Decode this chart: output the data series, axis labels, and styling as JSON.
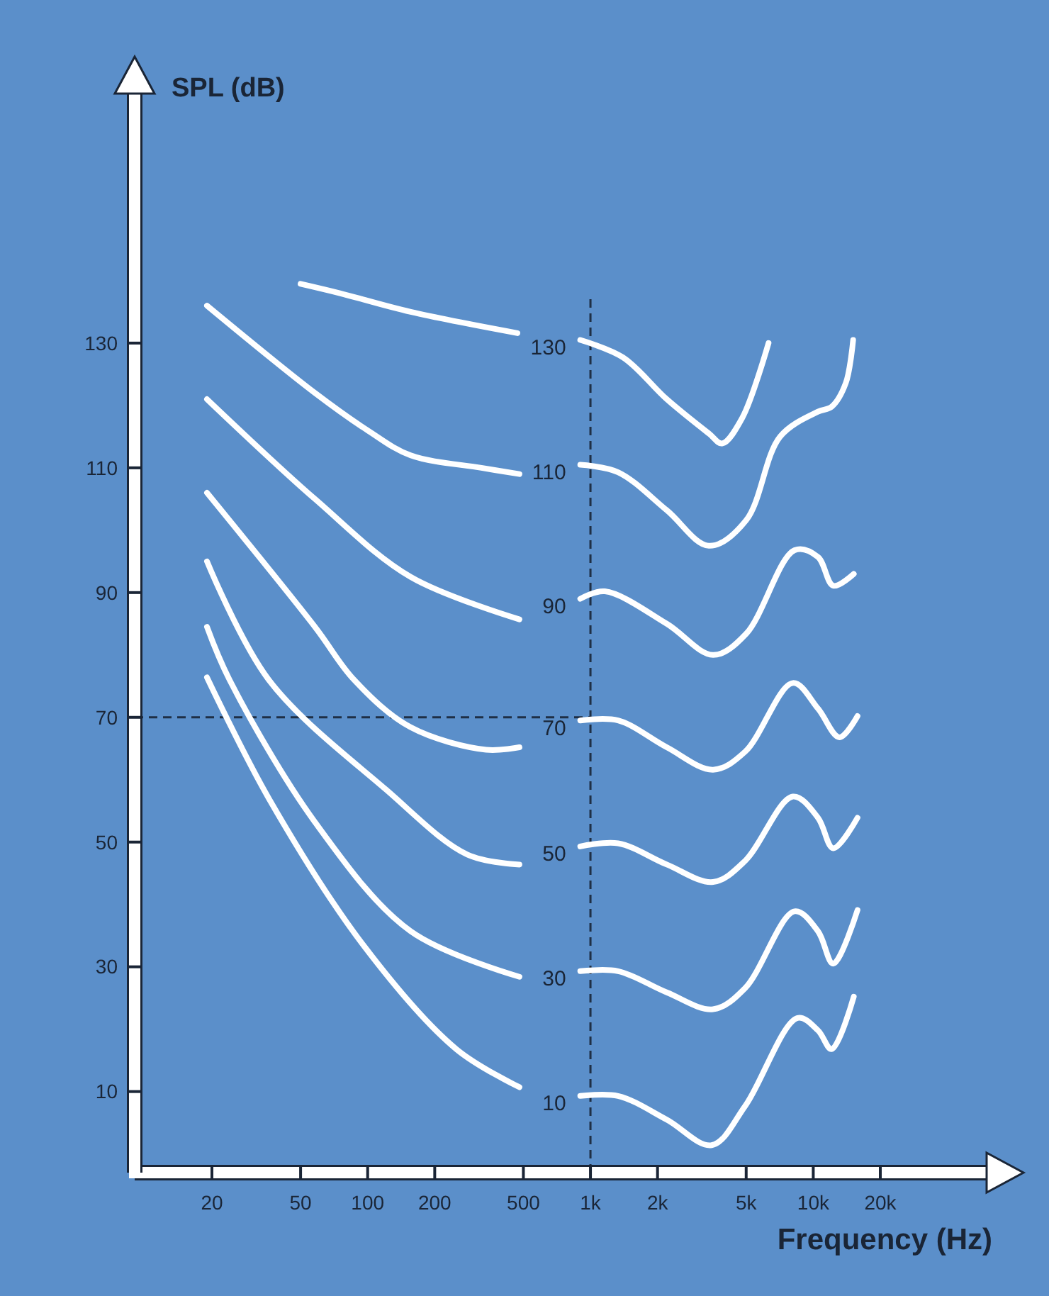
{
  "chart_data": {
    "type": "line",
    "xlabel": "Frequency (Hz)",
    "ylabel": "SPL (dB)",
    "log": "x",
    "xlim": [
      9,
      60000
    ],
    "ylim": [
      -3,
      170
    ],
    "xticks": [
      20,
      50,
      100,
      200,
      500,
      {
        "value": 1000,
        "label": "1k"
      },
      {
        "value": 2000,
        "label": "2k"
      },
      {
        "value": 5000,
        "label": "5k"
      },
      {
        "value": 10000,
        "label": "10k"
      },
      {
        "value": 20000,
        "label": "20k"
      }
    ],
    "yticks": [
      10,
      30,
      50,
      70,
      90,
      110,
      130
    ],
    "grid": false,
    "marker": "none",
    "line_style": "solid",
    "ref_lines": [
      {
        "axis": "x",
        "value": 1000,
        "color": "#1f2f45",
        "line_style": "dashed"
      },
      {
        "axis": "y",
        "value": 70,
        "color": "#1f2f45",
        "line_style": "dashed"
      }
    ],
    "series": [
      {
        "name": "130",
        "color": "#ffffff",
        "x": [
          50,
          75,
          156,
          470,
          700,
          900,
          1400,
          2200,
          3400,
          3900,
          4800,
          6300
        ],
        "values": [
          139.5,
          138,
          135,
          131.6,
          null,
          130.5,
          127.7,
          121,
          115.5,
          113.9,
          118,
          130
        ]
      },
      {
        "name": "110",
        "color": "#ffffff",
        "x": [
          19,
          58,
          100,
          156,
          324,
          480,
          700,
          900,
          1330,
          2200,
          3400,
          5000,
          7100,
          10500,
          12100,
          14000,
          15100
        ],
        "values": [
          136,
          122,
          116,
          112,
          110,
          109,
          null,
          110.5,
          109.3,
          103.2,
          97.5,
          101.6,
          115,
          119,
          119.8,
          123.6,
          130.5
        ]
      },
      {
        "name": "90",
        "color": "#ffffff",
        "x": [
          19,
          58,
          156,
          480,
          700,
          900,
          1160,
          2200,
          3550,
          5000,
          8250,
          10500,
          12300,
          15200
        ],
        "values": [
          121,
          105,
          92.5,
          85.7,
          null,
          89,
          90.2,
          85,
          80,
          83.4,
          96.8,
          95.7,
          91.1,
          93
        ]
      },
      {
        "name": "70",
        "color": "#ffffff",
        "x": [
          19,
          58,
          87,
          156,
          340,
          480,
          700,
          900,
          1330,
          2200,
          3550,
          4950,
          8100,
          10500,
          13100,
          15800
        ],
        "values": [
          106,
          84.5,
          76,
          68.4,
          64.8,
          65.2,
          null,
          69.5,
          69.5,
          65.2,
          61.6,
          64.5,
          75.5,
          71.4,
          66.8,
          70.2
        ]
      },
      {
        "name": "50",
        "color": "#ffffff",
        "x": [
          19,
          36,
          121,
          280,
          480,
          700,
          900,
          1330,
          2200,
          3550,
          4950,
          8100,
          10500,
          12300,
          15800
        ],
        "values": [
          95,
          76,
          58.4,
          48,
          46.4,
          null,
          49.3,
          49.8,
          46.4,
          43.6,
          47,
          57.3,
          53.9,
          49,
          53.9
        ]
      },
      {
        "name": "30",
        "color": "#ffffff",
        "x": [
          19,
          24,
          58,
          156,
          480,
          700,
          900,
          1330,
          2200,
          3550,
          4950,
          8250,
          10500,
          12300,
          15800
        ],
        "values": [
          84.5,
          76,
          53.2,
          35.7,
          28.4,
          null,
          29.3,
          29.3,
          25.9,
          23.2,
          26.6,
          38.9,
          35.7,
          30.5,
          39.1
        ]
      },
      {
        "name": "10",
        "color": "#ffffff",
        "x": [
          19,
          36,
          96,
          250,
          480,
          700,
          900,
          1330,
          2200,
          3500,
          4950,
          8500,
          10500,
          12100,
          15200
        ],
        "values": [
          76.4,
          57,
          33.4,
          16.8,
          10.7,
          null,
          9.3,
          9.3,
          5.5,
          1.4,
          7.7,
          21.8,
          19.8,
          16.8,
          25.2
        ]
      }
    ]
  }
}
